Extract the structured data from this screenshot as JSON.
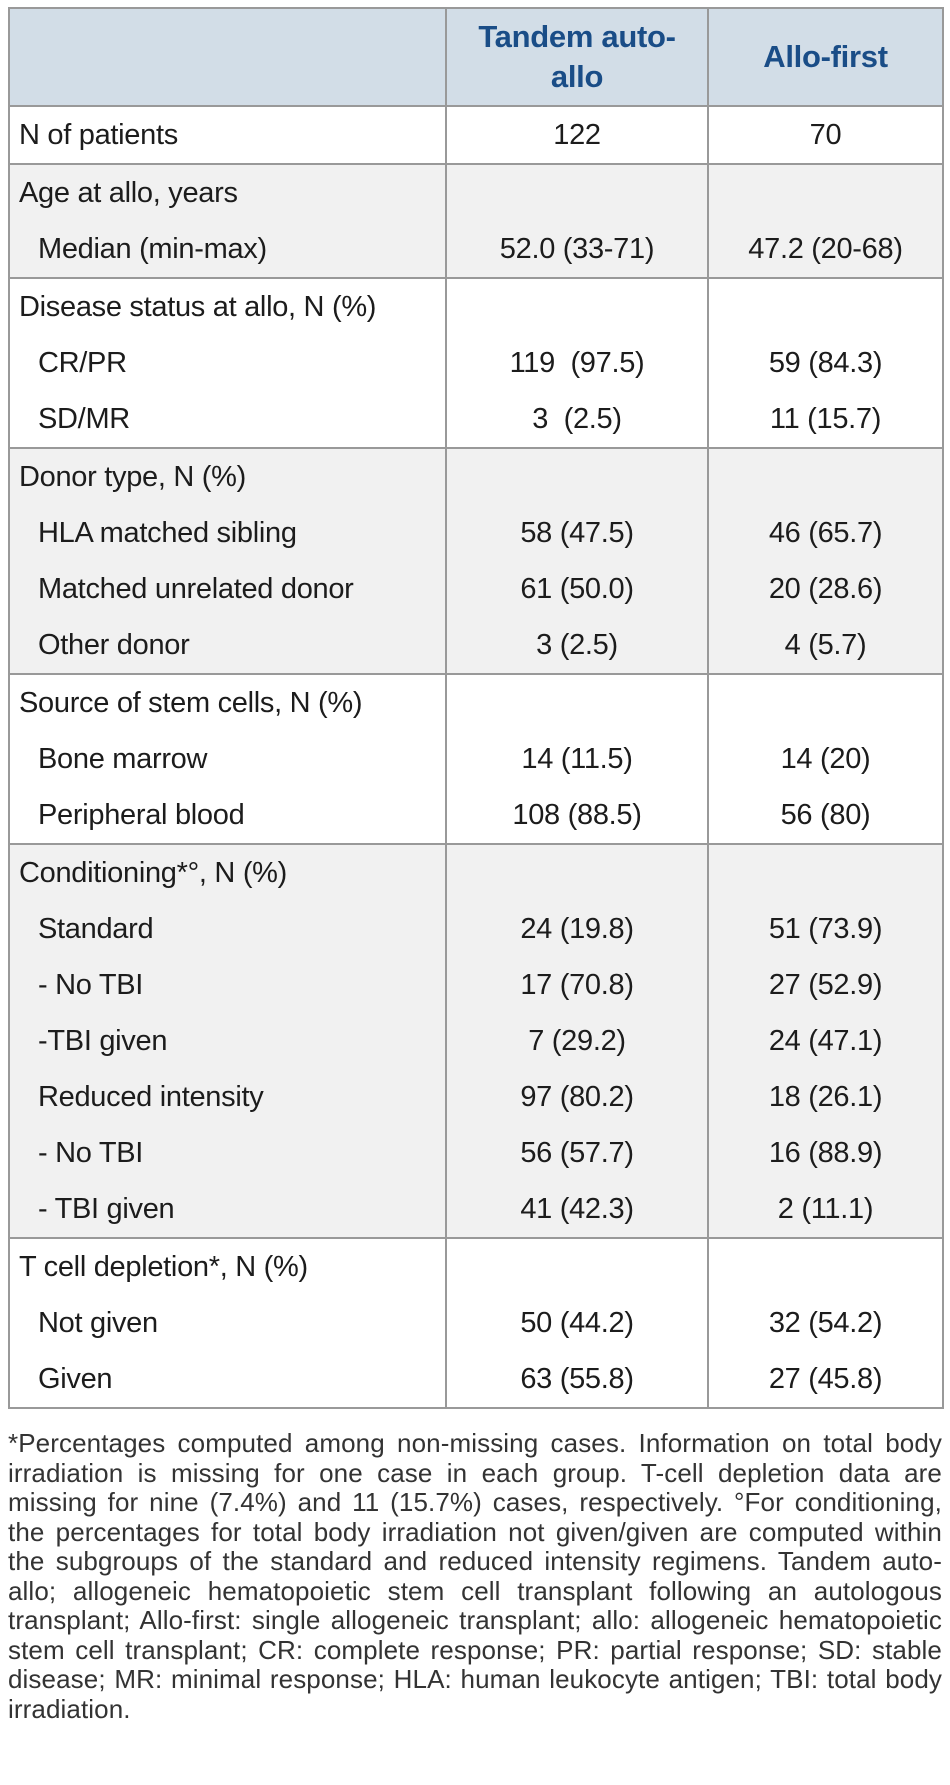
{
  "colors": {
    "header_bg": "#d2dde7",
    "header_text": "#1a4d87",
    "row_alt_bg": "#f1f1f1",
    "border": "#999999",
    "body_text": "#1c1c1c",
    "footnote_text": "#333333"
  },
  "header": {
    "col_tandem": "Tandem auto-allo",
    "col_allofirst": "Allo-first"
  },
  "sections": [
    {
      "shade": "white",
      "rows": [
        {
          "label": "N of patients",
          "tandem": "122",
          "allofirst": "70"
        }
      ]
    },
    {
      "shade": "gray",
      "rows": [
        {
          "label": "Age at allo, years",
          "tandem": "",
          "allofirst": ""
        },
        {
          "label": "Median (min-max)",
          "tandem": "52.0 (33-71)",
          "allofirst": "47.2 (20-68)"
        }
      ]
    },
    {
      "shade": "white",
      "rows": [
        {
          "label": "Disease status at allo, N (%)",
          "tandem": "",
          "allofirst": ""
        },
        {
          "label": "CR/PR",
          "tandem": "119  (97.5)",
          "allofirst": "59 (84.3)"
        },
        {
          "label": "SD/MR",
          "tandem": "3  (2.5)",
          "allofirst": "11 (15.7)"
        }
      ]
    },
    {
      "shade": "gray",
      "rows": [
        {
          "label": "Donor type, N (%)",
          "tandem": "",
          "allofirst": ""
        },
        {
          "label": "HLA matched sibling",
          "tandem": "58 (47.5)",
          "allofirst": "46 (65.7)"
        },
        {
          "label": "Matched unrelated donor",
          "tandem": "61 (50.0)",
          "allofirst": "20 (28.6)"
        },
        {
          "label": "Other donor",
          "tandem": "3 (2.5)",
          "allofirst": "4 (5.7)"
        }
      ]
    },
    {
      "shade": "white",
      "rows": [
        {
          "label": "Source of stem cells, N (%)",
          "tandem": "",
          "allofirst": ""
        },
        {
          "label": "Bone marrow",
          "tandem": "14 (11.5)",
          "allofirst": "14 (20)"
        },
        {
          "label": "Peripheral blood",
          "tandem": "108 (88.5)",
          "allofirst": "56 (80)"
        }
      ]
    },
    {
      "shade": "gray",
      "rows": [
        {
          "label": "Conditioning*°, N (%)",
          "tandem": "",
          "allofirst": ""
        },
        {
          "label": "Standard",
          "tandem": "24 (19.8)",
          "allofirst": "51 (73.9)"
        },
        {
          "label": "- No TBI",
          "tandem": "17 (70.8)",
          "allofirst": "27 (52.9)"
        },
        {
          "label": "-TBI given",
          "tandem": "7 (29.2)",
          "allofirst": "24 (47.1)"
        },
        {
          "label": "Reduced intensity",
          "tandem": "97 (80.2)",
          "allofirst": "18 (26.1)"
        },
        {
          "label": "- No TBI",
          "tandem": "56 (57.7)",
          "allofirst": "16 (88.9)"
        },
        {
          "label": "- TBI given",
          "tandem": "41 (42.3)",
          "allofirst": "2 (11.1)"
        }
      ]
    },
    {
      "shade": "white",
      "rows": [
        {
          "label": "T cell depletion*, N (%)",
          "tandem": "",
          "allofirst": ""
        },
        {
          "label": "Not given",
          "tandem": "50 (44.2)",
          "allofirst": "32 (54.2)"
        },
        {
          "label": "Given",
          "tandem": "63 (55.8)",
          "allofirst": "27 (45.8)"
        }
      ]
    }
  ],
  "footnote": "*Percentages computed among non-missing cases. Information on total body irradiation is missing for one case in each group. T-cell depletion data are missing for nine (7.4%) and 11 (15.7%) cases, respectively. °For conditioning, the percentages for total body irradiation not given/given are computed within the subgroups of the standard and reduced intensity regimens. Tandem auto-allo; allogeneic hematopoietic stem cell transplant following an autologous transplant; Allo-first: single allogeneic transplant; allo: allogeneic hematopoietic stem cell transplant; CR: complete response; PR: partial response; SD: stable disease; MR: minimal response; HLA: human leukocyte antigen; TBI: total body irradiation."
}
